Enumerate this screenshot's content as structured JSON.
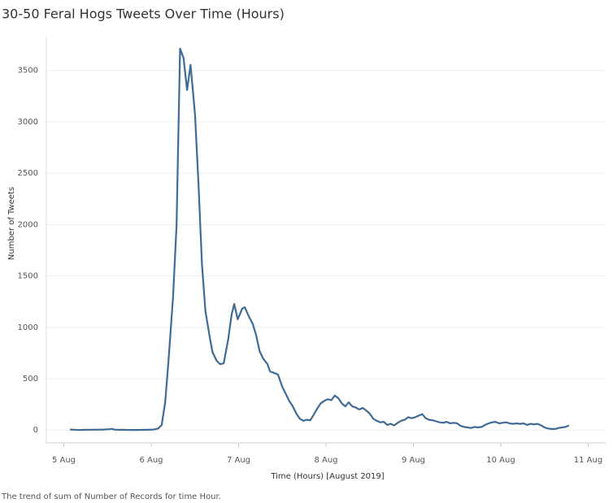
{
  "chart_data": {
    "type": "line",
    "title": "30-50 Feral Hogs Tweets Over Time (Hours)",
    "xlabel": "Time (Hours) [August 2019]",
    "ylabel": "Number of Tweets",
    "caption": "The trend of sum of Number of Records for time Hour.",
    "x": [
      5.07,
      5.12,
      5.17,
      5.25,
      5.35,
      5.45,
      5.52,
      5.55,
      5.58,
      5.65,
      5.75,
      5.85,
      5.95,
      6.03,
      6.08,
      6.12,
      6.16,
      6.2,
      6.25,
      6.29,
      6.33,
      6.37,
      6.41,
      6.45,
      6.5,
      6.54,
      6.58,
      6.62,
      6.67,
      6.7,
      6.75,
      6.79,
      6.83,
      6.88,
      6.92,
      6.95,
      6.99,
      7.04,
      7.07,
      7.12,
      7.16,
      7.2,
      7.24,
      7.28,
      7.33,
      7.36,
      7.41,
      7.45,
      7.5,
      7.54,
      7.58,
      7.62,
      7.66,
      7.7,
      7.74,
      7.78,
      7.82,
      7.86,
      7.9,
      7.94,
      7.98,
      8.02,
      8.06,
      8.1,
      8.14,
      8.18,
      8.22,
      8.26,
      8.3,
      8.34,
      8.38,
      8.42,
      8.46,
      8.5,
      8.54,
      8.58,
      8.62,
      8.66,
      8.7,
      8.74,
      8.78,
      8.82,
      8.86,
      8.9,
      8.94,
      8.98,
      9.02,
      9.06,
      9.1,
      9.14,
      9.18,
      9.22,
      9.26,
      9.3,
      9.34,
      9.38,
      9.42,
      9.46,
      9.5,
      9.54,
      9.58,
      9.62,
      9.66,
      9.7,
      9.74,
      9.78,
      9.82,
      9.86,
      9.9,
      9.94,
      9.98,
      10.02,
      10.06,
      10.1,
      10.14,
      10.18,
      10.22,
      10.26,
      10.3,
      10.34,
      10.38,
      10.42,
      10.46,
      10.5,
      10.54,
      10.58,
      10.62,
      10.66,
      10.7,
      10.74,
      10.78
    ],
    "series": [
      {
        "name": "Number of Tweets",
        "color": "#3f6b94",
        "values": [
          5,
          3,
          0,
          2,
          3,
          5,
          8,
          12,
          3,
          2,
          1,
          1,
          2,
          5,
          15,
          50,
          270,
          700,
          1300,
          2000,
          3713,
          3620,
          3310,
          3555,
          3080,
          2407,
          1615,
          1156,
          903,
          760,
          673,
          641,
          649,
          879,
          1124,
          1227,
          1077,
          1180,
          1196,
          1100,
          1037,
          926,
          768,
          697,
          641,
          570,
          554,
          540,
          420,
          350,
          280,
          230,
          160,
          110,
          90,
          100,
          95,
          150,
          210,
          260,
          285,
          300,
          290,
          335,
          310,
          260,
          230,
          270,
          230,
          220,
          200,
          215,
          190,
          160,
          110,
          90,
          75,
          80,
          50,
          60,
          45,
          70,
          90,
          100,
          125,
          115,
          125,
          140,
          155,
          115,
          100,
          95,
          85,
          75,
          70,
          80,
          65,
          70,
          65,
          40,
          30,
          25,
          20,
          30,
          25,
          30,
          50,
          65,
          75,
          80,
          65,
          70,
          75,
          65,
          60,
          65,
          60,
          65,
          50,
          60,
          55,
          60,
          45,
          25,
          15,
          10,
          10,
          20,
          25,
          30,
          45
        ]
      }
    ],
    "xlim": [
      4.8,
      11.2
    ],
    "xticks": [
      {
        "value": 5,
        "label": "5 Aug"
      },
      {
        "value": 6,
        "label": "6 Aug"
      },
      {
        "value": 7,
        "label": "7 Aug"
      },
      {
        "value": 8,
        "label": "8 Aug"
      },
      {
        "value": 9,
        "label": "9 Aug"
      },
      {
        "value": 10,
        "label": "10 Aug"
      },
      {
        "value": 11,
        "label": "11 Aug"
      }
    ],
    "ylim": [
      -125,
      3830
    ],
    "yticks": [
      0,
      500,
      1000,
      1500,
      2000,
      2500,
      3000,
      3500
    ],
    "grid": true
  }
}
